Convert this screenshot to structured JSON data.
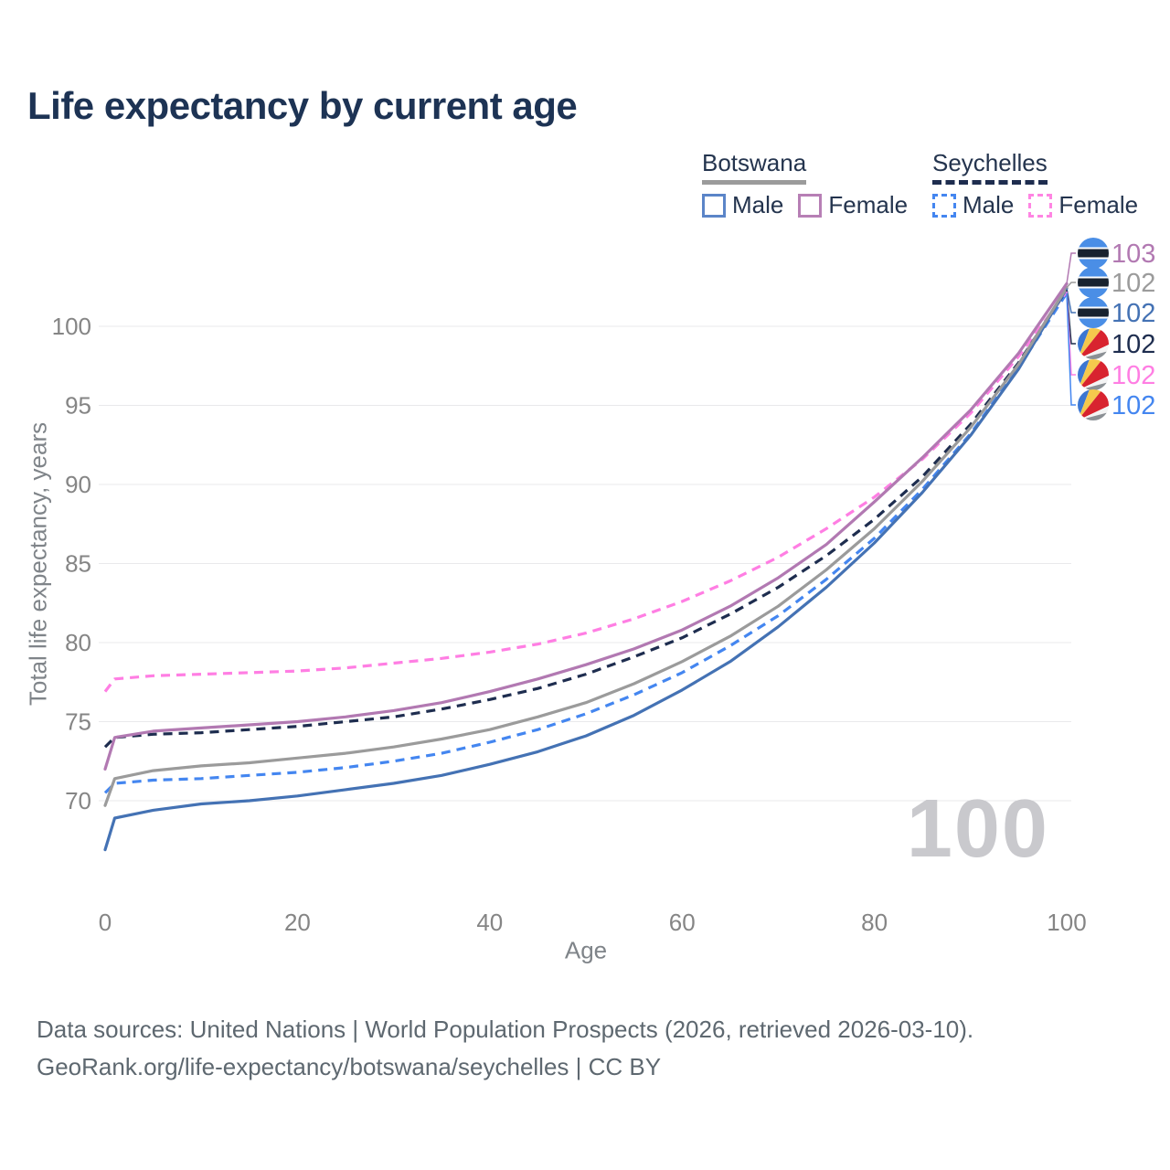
{
  "title": "Life expectancy by current age",
  "legend": {
    "groups": [
      {
        "label": "Botswana",
        "underline_color": "#9b9b9b",
        "underline_style": "solid",
        "items": [
          {
            "label": "Male",
            "color": "#5b85c8",
            "dashed": false
          },
          {
            "label": "Female",
            "color": "#b77fb5",
            "dashed": false
          }
        ]
      },
      {
        "label": "Seychelles",
        "underline_color": "#1e2d4f",
        "underline_style": "dashed",
        "items": [
          {
            "label": "Male",
            "color": "#4486f0",
            "dashed": true
          },
          {
            "label": "Female",
            "color": "#ff85e3",
            "dashed": true
          }
        ]
      }
    ]
  },
  "footer": {
    "line1": "Data sources: United Nations | World Population Prospects (2026, retrieved 2026-03-10).",
    "line2": "GeoRank.org/life-expectancy/botswana/seychelles | CC BY"
  },
  "chart_data": {
    "type": "line",
    "title": "Life expectancy by current age",
    "xlabel": "Age",
    "ylabel": "Total life expectancy, years",
    "xlim": [
      0,
      100
    ],
    "ylim": [
      66,
      104
    ],
    "xticks": [
      0,
      20,
      40,
      60,
      80,
      100
    ],
    "yticks": [
      70,
      75,
      80,
      85,
      90,
      95,
      100
    ],
    "grid": "horizontal",
    "gridline_color": "#e9e9eb",
    "tick_label_color": "#858585",
    "current_age_label": "100",
    "series": [
      {
        "id": "botswana-female",
        "country": "Botswana",
        "sex": "Female",
        "color": "#b279b2",
        "dashed": false,
        "flag": "botswana",
        "end_label": "103",
        "label_color": "#b279b2",
        "points": [
          [
            0,
            72.0
          ],
          [
            1,
            74.0
          ],
          [
            5,
            74.4
          ],
          [
            10,
            74.6
          ],
          [
            15,
            74.8
          ],
          [
            20,
            75.0
          ],
          [
            25,
            75.3
          ],
          [
            30,
            75.7
          ],
          [
            35,
            76.2
          ],
          [
            40,
            76.9
          ],
          [
            45,
            77.7
          ],
          [
            50,
            78.6
          ],
          [
            55,
            79.6
          ],
          [
            60,
            80.8
          ],
          [
            65,
            82.3
          ],
          [
            70,
            84.1
          ],
          [
            75,
            86.2
          ],
          [
            80,
            88.9
          ],
          [
            85,
            91.7
          ],
          [
            90,
            94.7
          ],
          [
            95,
            98.3
          ],
          [
            100,
            102.7
          ]
        ]
      },
      {
        "id": "botswana-both",
        "country": "Botswana",
        "sex": "Both sexes",
        "color": "#9b9b9b",
        "dashed": false,
        "flag": "botswana",
        "end_label": "102",
        "label_color": "#9b9b9b",
        "points": [
          [
            0,
            69.7
          ],
          [
            1,
            71.4
          ],
          [
            5,
            71.9
          ],
          [
            10,
            72.2
          ],
          [
            15,
            72.4
          ],
          [
            20,
            72.7
          ],
          [
            25,
            73.0
          ],
          [
            30,
            73.4
          ],
          [
            35,
            73.9
          ],
          [
            40,
            74.5
          ],
          [
            45,
            75.3
          ],
          [
            50,
            76.2
          ],
          [
            55,
            77.4
          ],
          [
            60,
            78.8
          ],
          [
            65,
            80.4
          ],
          [
            70,
            82.3
          ],
          [
            75,
            84.6
          ],
          [
            80,
            87.2
          ],
          [
            85,
            90.2
          ],
          [
            90,
            93.6
          ],
          [
            95,
            97.6
          ],
          [
            100,
            102.45
          ]
        ]
      },
      {
        "id": "botswana-male",
        "country": "Botswana",
        "sex": "Male",
        "color": "#4472b4",
        "dashed": false,
        "flag": "botswana",
        "end_label": "102",
        "label_color": "#4472b4",
        "points": [
          [
            0,
            66.9
          ],
          [
            1,
            68.9
          ],
          [
            5,
            69.4
          ],
          [
            10,
            69.8
          ],
          [
            15,
            70.0
          ],
          [
            20,
            70.3
          ],
          [
            25,
            70.7
          ],
          [
            30,
            71.1
          ],
          [
            35,
            71.6
          ],
          [
            40,
            72.3
          ],
          [
            45,
            73.1
          ],
          [
            50,
            74.1
          ],
          [
            55,
            75.4
          ],
          [
            60,
            77.0
          ],
          [
            65,
            78.8
          ],
          [
            70,
            81.0
          ],
          [
            75,
            83.5
          ],
          [
            80,
            86.3
          ],
          [
            85,
            89.5
          ],
          [
            90,
            93.1
          ],
          [
            95,
            97.3
          ],
          [
            100,
            102.4
          ]
        ]
      },
      {
        "id": "seychelles-both",
        "country": "Seychelles",
        "sex": "Both sexes",
        "color": "#1e2d4f",
        "dashed": true,
        "flag": "seychelles",
        "end_label": "102",
        "label_color": "#1e2d4f",
        "points": [
          [
            0,
            73.4
          ],
          [
            1,
            74.0
          ],
          [
            5,
            74.2
          ],
          [
            10,
            74.3
          ],
          [
            15,
            74.5
          ],
          [
            20,
            74.7
          ],
          [
            25,
            75.0
          ],
          [
            30,
            75.3
          ],
          [
            35,
            75.8
          ],
          [
            40,
            76.4
          ],
          [
            45,
            77.1
          ],
          [
            50,
            78.0
          ],
          [
            55,
            79.1
          ],
          [
            60,
            80.3
          ],
          [
            65,
            81.8
          ],
          [
            70,
            83.5
          ],
          [
            75,
            85.5
          ],
          [
            80,
            87.8
          ],
          [
            85,
            90.5
          ],
          [
            90,
            93.8
          ],
          [
            95,
            97.7
          ],
          [
            100,
            102.3
          ]
        ]
      },
      {
        "id": "seychelles-female",
        "country": "Seychelles",
        "sex": "Female",
        "color": "#ff7ee3",
        "dashed": true,
        "flag": "seychelles",
        "end_label": "102",
        "label_color": "#ff7ee3",
        "points": [
          [
            0,
            76.9
          ],
          [
            1,
            77.7
          ],
          [
            5,
            77.9
          ],
          [
            10,
            78.0
          ],
          [
            15,
            78.1
          ],
          [
            20,
            78.2
          ],
          [
            25,
            78.4
          ],
          [
            30,
            78.7
          ],
          [
            35,
            79.0
          ],
          [
            40,
            79.4
          ],
          [
            45,
            79.9
          ],
          [
            50,
            80.6
          ],
          [
            55,
            81.5
          ],
          [
            60,
            82.6
          ],
          [
            65,
            83.9
          ],
          [
            70,
            85.4
          ],
          [
            75,
            87.2
          ],
          [
            80,
            89.2
          ],
          [
            85,
            91.6
          ],
          [
            90,
            94.5
          ],
          [
            95,
            98.1
          ],
          [
            100,
            102.2
          ]
        ]
      },
      {
        "id": "seychelles-male",
        "country": "Seychelles",
        "sex": "Male",
        "color": "#4486f0",
        "dashed": true,
        "flag": "seychelles",
        "end_label": "102",
        "label_color": "#4486f0",
        "points": [
          [
            0,
            70.5
          ],
          [
            1,
            71.1
          ],
          [
            5,
            71.3
          ],
          [
            10,
            71.4
          ],
          [
            15,
            71.6
          ],
          [
            20,
            71.8
          ],
          [
            25,
            72.1
          ],
          [
            30,
            72.5
          ],
          [
            35,
            73.0
          ],
          [
            40,
            73.7
          ],
          [
            45,
            74.5
          ],
          [
            50,
            75.5
          ],
          [
            55,
            76.7
          ],
          [
            60,
            78.1
          ],
          [
            65,
            79.8
          ],
          [
            70,
            81.7
          ],
          [
            75,
            84.0
          ],
          [
            80,
            86.6
          ],
          [
            85,
            89.7
          ],
          [
            90,
            93.2
          ],
          [
            95,
            97.4
          ],
          [
            100,
            102.1
          ]
        ]
      }
    ]
  }
}
